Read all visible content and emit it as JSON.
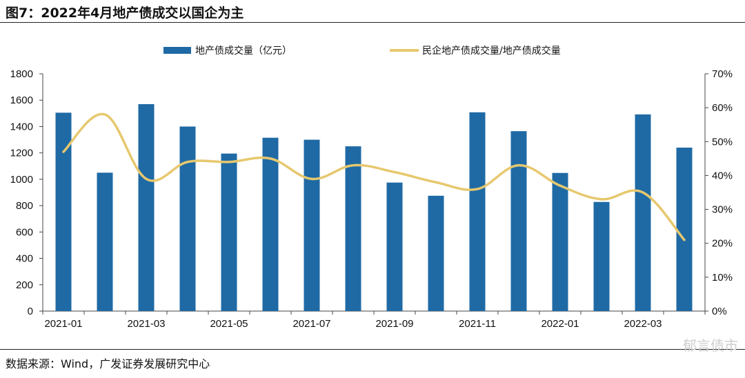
{
  "figure": {
    "title": "图7：2022年4月地产债成交以国企为主",
    "source": "数据来源：Wind，广发证券发展研究中心",
    "watermark": "郁言债市"
  },
  "chart_data": {
    "type": "bar",
    "x": [
      "2021-01",
      "2021-02",
      "2021-03",
      "2021-04",
      "2021-05",
      "2021-06",
      "2021-07",
      "2021-08",
      "2021-09",
      "2021-10",
      "2021-11",
      "2021-12",
      "2022-01",
      "2022-02",
      "2022-03",
      "2022-04"
    ],
    "x_tick_labels": [
      "2021-01",
      "2021-03",
      "2021-05",
      "2021-07",
      "2021-09",
      "2021-11",
      "2022-01",
      "2022-03"
    ],
    "series": [
      {
        "name": "地产债成交量（亿元）",
        "type": "bar",
        "axis": "left",
        "color": "#1F6AA5",
        "values": [
          1505,
          1050,
          1570,
          1400,
          1195,
          1315,
          1300,
          1250,
          975,
          875,
          1508,
          1365,
          1048,
          828,
          1492,
          1240
        ]
      },
      {
        "name": "民企地产债成交量/地产债成交量",
        "type": "line",
        "axis": "right",
        "color": "#E6C86E",
        "values": [
          47,
          58,
          39,
          44,
          44,
          45,
          39,
          43,
          41,
          38,
          36,
          43,
          37,
          33,
          35,
          21
        ]
      }
    ],
    "y_left": {
      "min": 0,
      "max": 1800,
      "step": 200,
      "ticks": [
        "0",
        "200",
        "400",
        "600",
        "800",
        "1000",
        "1200",
        "1400",
        "1600",
        "1800"
      ]
    },
    "y_right": {
      "min": 0,
      "max": 70,
      "step": 10,
      "ticks": [
        "0%",
        "10%",
        "20%",
        "30%",
        "40%",
        "50%",
        "60%",
        "70%"
      ]
    },
    "grid": false,
    "legend_position": "top"
  }
}
